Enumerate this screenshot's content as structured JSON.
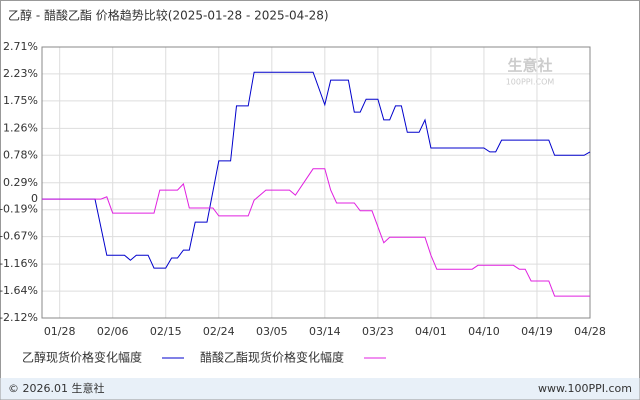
{
  "chart_data": {
    "type": "line",
    "title": "乙醇 - 醋酸乙酯 价格趋势比较(2025-01-28 - 2025-04-28)",
    "watermark": [
      "生意社",
      "100PPI.COM"
    ],
    "footer_left": "© 2026.01 生意社",
    "footer_right": "www.100PPI.com",
    "xlim": [
      "01/25",
      "04/28"
    ],
    "xticks": [
      "01/28",
      "02/06",
      "02/15",
      "02/24",
      "03/05",
      "03/14",
      "03/23",
      "04/01",
      "04/10",
      "04/19",
      "04/28"
    ],
    "ylim": [
      -2.12,
      2.71
    ],
    "yticks": [
      {
        "value": 2.71,
        "label": "2.71%"
      },
      {
        "value": 2.23,
        "label": "2.23%"
      },
      {
        "value": 1.75,
        "label": "1.75%"
      },
      {
        "value": 1.26,
        "label": "1.26%"
      },
      {
        "value": 0.78,
        "label": "0.78%"
      },
      {
        "value": 0.29,
        "label": "0.29%"
      },
      0,
      {
        "value": -0.19,
        "label": "-0.19%"
      },
      {
        "value": -0.67,
        "label": "-0.67%"
      },
      {
        "value": -1.16,
        "label": "-1.16%"
      },
      {
        "value": -1.64,
        "label": "-1.64%"
      },
      {
        "value": -2.12,
        "label": "-2.12%"
      }
    ],
    "grid": true,
    "series": [
      {
        "name": "乙醇现货价格变化幅度",
        "color": "#0000cc",
        "x": [
          "01/25",
          "02/03",
          "02/05",
          "02/08",
          "02/09",
          "02/10",
          "02/12",
          "02/13",
          "02/15",
          "02/16",
          "02/17",
          "02/18",
          "02/19",
          "02/20",
          "02/22",
          "02/24",
          "02/26",
          "02/27",
          "03/01",
          "03/02",
          "03/12",
          "03/14",
          "03/15",
          "03/18",
          "03/19",
          "03/20",
          "03/21",
          "03/23",
          "03/24",
          "03/25",
          "03/26",
          "03/27",
          "03/28",
          "03/30",
          "03/31",
          "04/01",
          "04/10",
          "04/11",
          "04/12",
          "04/13",
          "04/21",
          "04/22",
          "04/27",
          "04/28"
        ],
        "values": [
          0,
          0,
          -1.0,
          -1.0,
          -1.09,
          -1.0,
          -1.0,
          -1.23,
          -1.23,
          -1.05,
          -1.05,
          -0.91,
          -0.91,
          -0.41,
          -0.41,
          0.68,
          0.68,
          1.66,
          1.66,
          2.26,
          2.26,
          1.68,
          2.12,
          2.12,
          1.55,
          1.55,
          1.78,
          1.78,
          1.41,
          1.41,
          1.66,
          1.66,
          1.19,
          1.19,
          1.41,
          0.91,
          0.91,
          0.84,
          0.84,
          1.05,
          1.05,
          0.78,
          0.78,
          0.84
        ]
      },
      {
        "name": "醋酸乙酯现货价格变化幅度",
        "color": "#e020e0",
        "x": [
          "01/25",
          "02/04",
          "02/05",
          "02/06",
          "02/13",
          "02/14",
          "02/17",
          "02/18",
          "02/19",
          "02/23",
          "02/24",
          "03/01",
          "03/02",
          "03/04",
          "03/08",
          "03/09",
          "03/12",
          "03/14",
          "03/15",
          "03/16",
          "03/19",
          "03/20",
          "03/22",
          "03/24",
          "03/25",
          "03/31",
          "04/01",
          "04/02",
          "04/08",
          "04/09",
          "04/15",
          "04/16",
          "04/17",
          "04/18",
          "04/21",
          "04/22",
          "04/28"
        ],
        "values": [
          0,
          0,
          0.04,
          -0.25,
          -0.25,
          0.16,
          0.16,
          0.27,
          -0.16,
          -0.16,
          -0.3,
          -0.3,
          -0.02,
          0.16,
          0.16,
          0.07,
          0.54,
          0.54,
          0.16,
          -0.07,
          -0.07,
          -0.21,
          -0.21,
          -0.78,
          -0.68,
          -0.68,
          -1.0,
          -1.25,
          -1.25,
          -1.18,
          -1.18,
          -1.25,
          -1.25,
          -1.46,
          -1.46,
          -1.73,
          -1.73
        ]
      }
    ]
  }
}
